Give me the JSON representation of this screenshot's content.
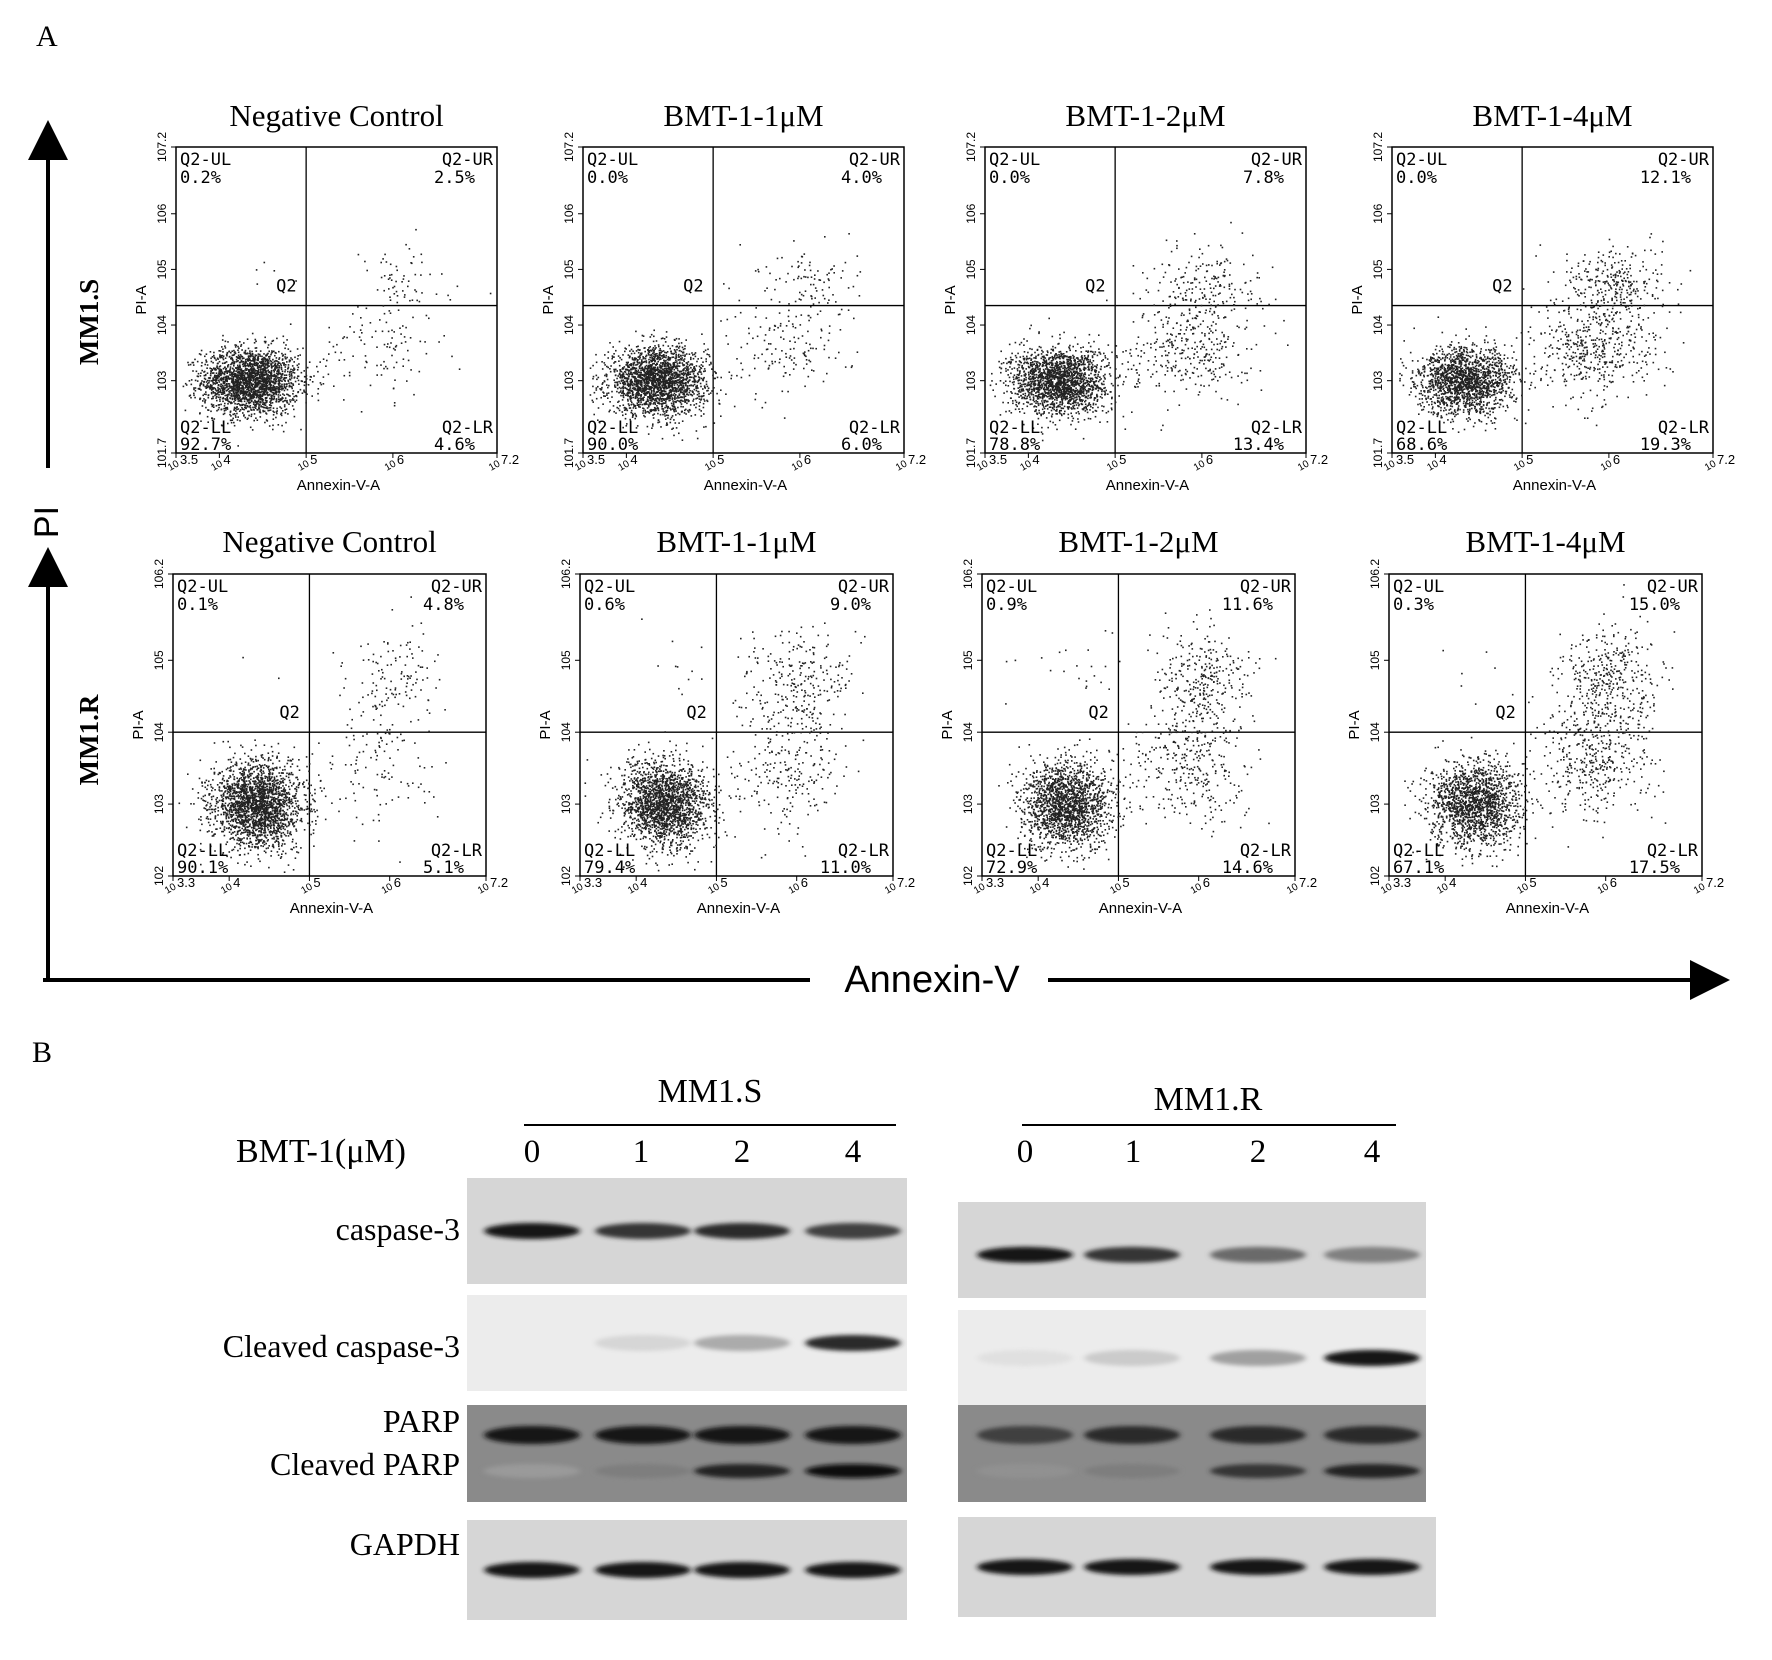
{
  "panel_a_label": "A",
  "panel_b_label": "B",
  "axis": {
    "pi_label": "PI",
    "annexin_label": "Annexin-V",
    "plot_y_label": "PI-A",
    "plot_x_label": "Annexin-V-A"
  },
  "chart_data": [
    {
      "type": "scatter",
      "cell_line": "MM1.S",
      "title": "Negative Control",
      "xlabel": "Annexin-V-A",
      "ylabel": "PI-A",
      "xlim": [
        3.5,
        7.2
      ],
      "ylim": [
        1.7,
        7.2
      ],
      "x_ticks": [
        "10^3.5",
        "10^4",
        "10^5",
        "10^6",
        "10^7.2"
      ],
      "y_ticks": [
        "10^1.7",
        "10^3",
        "10^4",
        "10^5",
        "10^6",
        "10^7.2"
      ],
      "gate": "Q2",
      "quadrants": [
        {
          "name": "Q2-UL",
          "percent": "0.2%"
        },
        {
          "name": "Q2-UR",
          "percent": "2.5%"
        },
        {
          "name": "Q2-LL",
          "percent": "92.7%"
        },
        {
          "name": "Q2-LR",
          "percent": "4.6%"
        }
      ]
    },
    {
      "type": "scatter",
      "cell_line": "MM1.S",
      "title": "BMT-1-1μM",
      "xlabel": "Annexin-V-A",
      "ylabel": "PI-A",
      "xlim": [
        3.5,
        7.2
      ],
      "ylim": [
        1.7,
        7.2
      ],
      "x_ticks": [
        "10^3.5",
        "10^4",
        "10^5",
        "10^6",
        "10^7.2"
      ],
      "y_ticks": [
        "10^1.7",
        "10^3",
        "10^4",
        "10^5",
        "10^6",
        "10^7.2"
      ],
      "gate": "Q2",
      "quadrants": [
        {
          "name": "Q2-UL",
          "percent": "0.0%"
        },
        {
          "name": "Q2-UR",
          "percent": "4.0%"
        },
        {
          "name": "Q2-LL",
          "percent": "90.0%"
        },
        {
          "name": "Q2-LR",
          "percent": "6.0%"
        }
      ]
    },
    {
      "type": "scatter",
      "cell_line": "MM1.S",
      "title": "BMT-1-2μM",
      "xlabel": "Annexin-V-A",
      "ylabel": "PI-A",
      "xlim": [
        3.5,
        7.2
      ],
      "ylim": [
        1.7,
        7.2
      ],
      "x_ticks": [
        "10^3.5",
        "10^4",
        "10^5",
        "10^6",
        "10^7.2"
      ],
      "y_ticks": [
        "10^1.7",
        "10^3",
        "10^4",
        "10^5",
        "10^6",
        "10^7.2"
      ],
      "gate": "Q2",
      "quadrants": [
        {
          "name": "Q2-UL",
          "percent": "0.0%"
        },
        {
          "name": "Q2-UR",
          "percent": "7.8%"
        },
        {
          "name": "Q2-LL",
          "percent": "78.8%"
        },
        {
          "name": "Q2-LR",
          "percent": "13.4%"
        }
      ]
    },
    {
      "type": "scatter",
      "cell_line": "MM1.S",
      "title": "BMT-1-4μM",
      "xlabel": "Annexin-V-A",
      "ylabel": "PI-A",
      "xlim": [
        3.5,
        7.2
      ],
      "ylim": [
        1.7,
        7.2
      ],
      "x_ticks": [
        "10^3.5",
        "10^4",
        "10^5",
        "10^6",
        "10^7.2"
      ],
      "y_ticks": [
        "10^1.7",
        "10^3",
        "10^4",
        "10^5",
        "10^6",
        "10^7.2"
      ],
      "gate": "Q2",
      "quadrants": [
        {
          "name": "Q2-UL",
          "percent": "0.0%"
        },
        {
          "name": "Q2-UR",
          "percent": "12.1%"
        },
        {
          "name": "Q2-LL",
          "percent": "68.6%"
        },
        {
          "name": "Q2-LR",
          "percent": "19.3%"
        }
      ]
    },
    {
      "type": "scatter",
      "cell_line": "MM1.R",
      "title": "Negative Control",
      "xlabel": "Annexin-V-A",
      "ylabel": "PI-A",
      "xlim": [
        3.3,
        7.2
      ],
      "ylim": [
        2,
        6.2
      ],
      "x_ticks": [
        "10^3.3",
        "10^4",
        "10^5",
        "10^6",
        "10^7.2"
      ],
      "y_ticks": [
        "10^2",
        "10^3",
        "10^4",
        "10^5",
        "10^6.2"
      ],
      "gate": "Q2",
      "quadrants": [
        {
          "name": "Q2-UL",
          "percent": "0.1%"
        },
        {
          "name": "Q2-UR",
          "percent": "4.8%"
        },
        {
          "name": "Q2-LL",
          "percent": "90.1%"
        },
        {
          "name": "Q2-LR",
          "percent": "5.1%"
        }
      ]
    },
    {
      "type": "scatter",
      "cell_line": "MM1.R",
      "title": "BMT-1-1μM",
      "xlabel": "Annexin-V-A",
      "ylabel": "PI-A",
      "xlim": [
        3.3,
        7.2
      ],
      "ylim": [
        2,
        6.2
      ],
      "x_ticks": [
        "10^3.3",
        "10^4",
        "10^5",
        "10^6",
        "10^7.2"
      ],
      "y_ticks": [
        "10^2",
        "10^3",
        "10^4",
        "10^5",
        "10^6.2"
      ],
      "gate": "Q2",
      "quadrants": [
        {
          "name": "Q2-UL",
          "percent": "0.6%"
        },
        {
          "name": "Q2-UR",
          "percent": "9.0%"
        },
        {
          "name": "Q2-LL",
          "percent": "79.4%"
        },
        {
          "name": "Q2-LR",
          "percent": "11.0%"
        }
      ]
    },
    {
      "type": "scatter",
      "cell_line": "MM1.R",
      "title": "BMT-1-2μM",
      "xlabel": "Annexin-V-A",
      "ylabel": "PI-A",
      "xlim": [
        3.3,
        7.2
      ],
      "ylim": [
        2,
        6.2
      ],
      "x_ticks": [
        "10^3.3",
        "10^4",
        "10^5",
        "10^6",
        "10^7.2"
      ],
      "y_ticks": [
        "10^2",
        "10^3",
        "10^4",
        "10^5",
        "10^6.2"
      ],
      "gate": "Q2",
      "quadrants": [
        {
          "name": "Q2-UL",
          "percent": "0.9%"
        },
        {
          "name": "Q2-UR",
          "percent": "11.6%"
        },
        {
          "name": "Q2-LL",
          "percent": "72.9%"
        },
        {
          "name": "Q2-LR",
          "percent": "14.6%"
        }
      ]
    },
    {
      "type": "scatter",
      "cell_line": "MM1.R",
      "title": "BMT-1-4μM",
      "xlabel": "Annexin-V-A",
      "ylabel": "PI-A",
      "xlim": [
        3.3,
        7.2
      ],
      "ylim": [
        2,
        6.2
      ],
      "x_ticks": [
        "10^3.3",
        "10^4",
        "10^5",
        "10^6",
        "10^7.2"
      ],
      "y_ticks": [
        "10^2",
        "10^3",
        "10^4",
        "10^5",
        "10^6.2"
      ],
      "gate": "Q2",
      "quadrants": [
        {
          "name": "Q2-UL",
          "percent": "0.3%"
        },
        {
          "name": "Q2-UR",
          "percent": "15.0%"
        },
        {
          "name": "Q2-LL",
          "percent": "67.1%"
        },
        {
          "name": "Q2-LR",
          "percent": "17.5%"
        }
      ]
    }
  ],
  "western": {
    "treatment_label": "BMT-1(μM)",
    "groups": [
      {
        "name": "MM1.S",
        "lanes": [
          "0",
          "1",
          "2",
          "4"
        ]
      },
      {
        "name": "MM1.R",
        "lanes": [
          "0",
          "1",
          "2",
          "4"
        ]
      }
    ],
    "rows": [
      {
        "labels": [
          "caspase-3"
        ],
        "intensity": {
          "MM1.S": [
            1.0,
            0.85,
            0.9,
            0.8
          ],
          "MM1.R": [
            1.0,
            0.85,
            0.6,
            0.5
          ]
        }
      },
      {
        "labels": [
          "Cleaved caspase-3"
        ],
        "intensity": {
          "MM1.S": [
            0.0,
            0.1,
            0.3,
            0.9
          ],
          "MM1.R": [
            0.05,
            0.15,
            0.35,
            1.0
          ]
        }
      },
      {
        "labels": [
          "PARP",
          "Cleaved PARP"
        ],
        "intensity": {
          "MM1.S": [
            1.0,
            1.0,
            1.0,
            1.0
          ],
          "MM1.R": [
            0.8,
            0.9,
            0.9,
            0.9
          ]
        },
        "cleaved_intensity": {
          "MM1.S": [
            0.25,
            0.4,
            0.9,
            1.0
          ],
          "MM1.R": [
            0.3,
            0.4,
            0.8,
            0.9
          ]
        }
      },
      {
        "labels": [
          "GAPDH"
        ],
        "intensity": {
          "MM1.S": [
            1.0,
            1.0,
            1.0,
            1.0
          ],
          "MM1.R": [
            1.0,
            1.0,
            1.0,
            1.0
          ]
        }
      }
    ]
  }
}
